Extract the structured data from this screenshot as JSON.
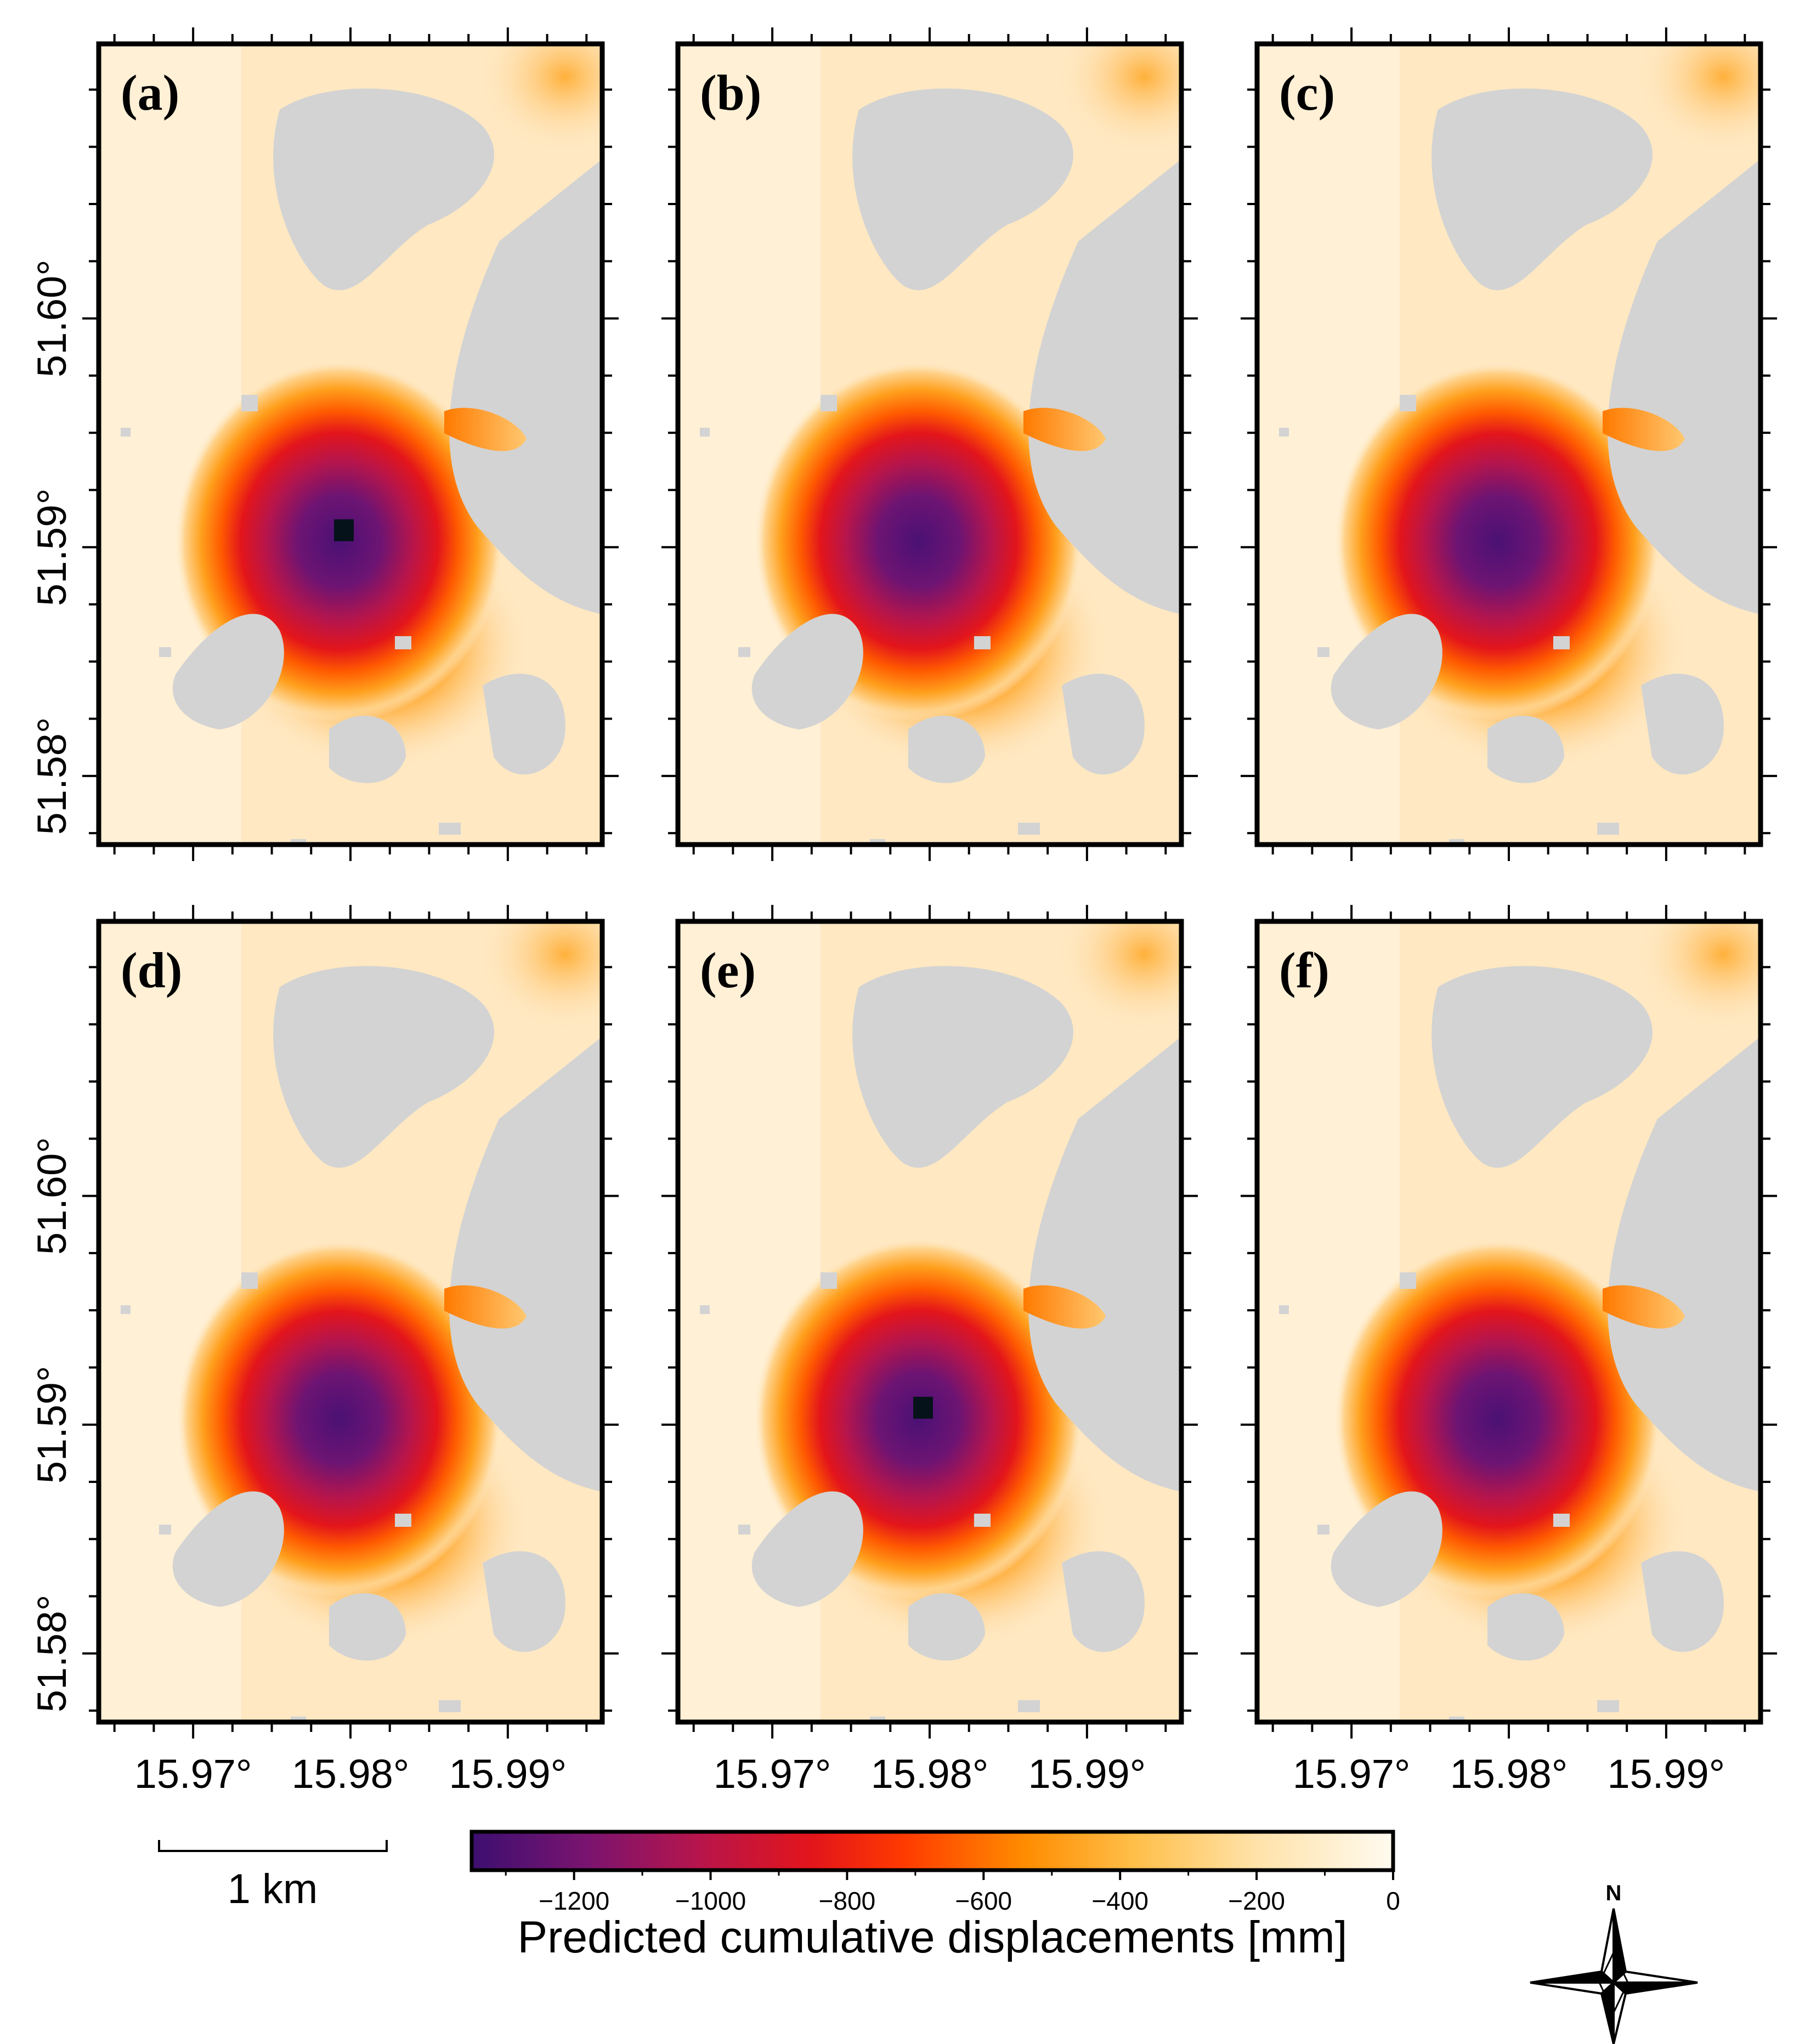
{
  "chart_data": {
    "type": "heatmap",
    "title": "",
    "colorbar": {
      "title": "Predicted cumulative displacements [mm]",
      "range": [
        -1350,
        0
      ],
      "ticks": [
        -1200,
        -1000,
        -800,
        -600,
        -400,
        -200,
        0
      ],
      "tick_labels": [
        "−1200",
        "−1000",
        "−800",
        "−600",
        "−400",
        "−200",
        "0"
      ],
      "colors": [
        "#3c0f70",
        "#7a1470",
        "#b8154a",
        "#e3151b",
        "#ff3b00",
        "#ff8c00",
        "#ffbf4a",
        "#ffe2a8",
        "#fffaf0"
      ]
    },
    "axes": {
      "lon_range": [
        15.964,
        15.996
      ],
      "lat_range": [
        51.577,
        51.612
      ],
      "lon_ticks": [
        15.97,
        15.98,
        15.99
      ],
      "lat_ticks": [
        51.58,
        51.59,
        51.6
      ],
      "lon_tick_labels": [
        "15.97°",
        "15.98°",
        "15.99°"
      ],
      "lat_tick_labels": [
        "51.58°",
        "51.59°",
        "51.60°"
      ]
    },
    "panels": [
      {
        "label": "(a)",
        "center_lon": 15.98,
        "center_lat": 51.5905,
        "peak_mm": -1350
      },
      {
        "label": "(b)",
        "center_lon": 15.98,
        "center_lat": 51.5905,
        "peak_mm": -1300
      },
      {
        "label": "(c)",
        "center_lon": 15.98,
        "center_lat": 51.5905,
        "peak_mm": -1230
      },
      {
        "label": "(d)",
        "center_lon": 15.98,
        "center_lat": 51.5905,
        "peak_mm": -1200
      },
      {
        "label": "(e)",
        "center_lon": 15.98,
        "center_lat": 51.5905,
        "peak_mm": -1350
      },
      {
        "label": "(f)",
        "center_lon": 15.98,
        "center_lat": 51.5905,
        "peak_mm": -1260
      }
    ],
    "no_data_color": "#d3d3d3"
  },
  "scale_bar": {
    "label": "1 km"
  },
  "north_arrow": {
    "label": "N"
  }
}
